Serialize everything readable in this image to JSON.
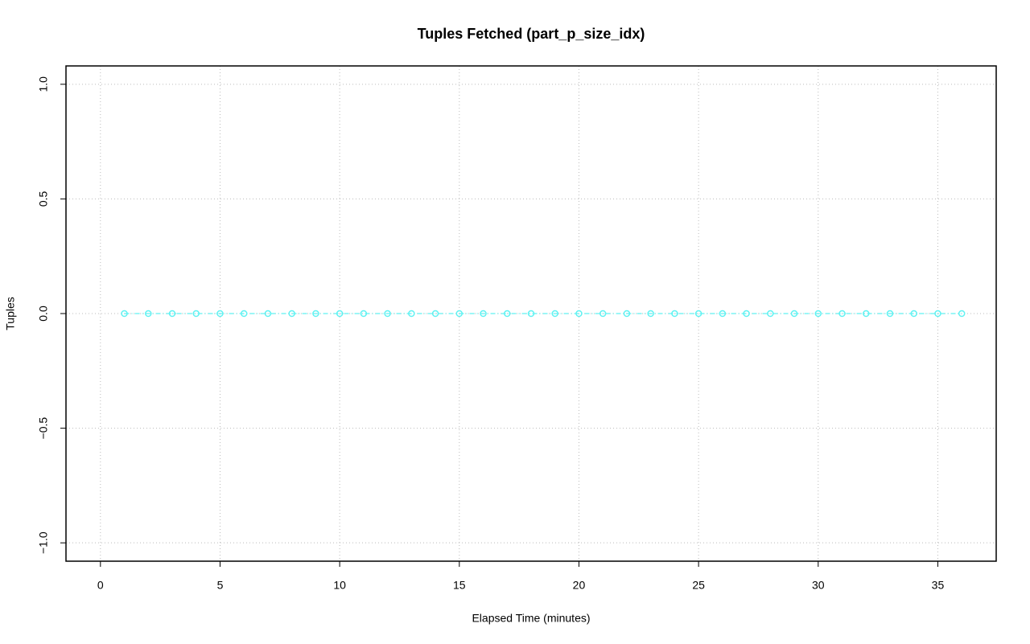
{
  "chart_data": {
    "type": "line",
    "title": "Tuples Fetched (part_p_size_idx)",
    "x_label": "Elapsed Time (minutes)",
    "y_label": "Tuples",
    "x": [
      1,
      2,
      3,
      4,
      5,
      6,
      7,
      8,
      9,
      10,
      11,
      12,
      13,
      14,
      15,
      16,
      17,
      18,
      19,
      20,
      21,
      22,
      23,
      24,
      25,
      26,
      27,
      28,
      29,
      30,
      31,
      32,
      33,
      34,
      35,
      36
    ],
    "values": [
      0,
      0,
      0,
      0,
      0,
      0,
      0,
      0,
      0,
      0,
      0,
      0,
      0,
      0,
      0,
      0,
      0,
      0,
      0,
      0,
      0,
      0,
      0,
      0,
      0,
      0,
      0,
      0,
      0,
      0,
      0,
      0,
      0,
      0,
      0,
      0
    ],
    "color": "#5ff2f2",
    "xlim": [
      -1.44,
      37.44
    ],
    "xticks": [
      0,
      5,
      10,
      15,
      20,
      25,
      30,
      35
    ],
    "ylim": [
      -1.08,
      1.08
    ],
    "yticks": [
      {
        "value": -1,
        "label": "−1.0"
      },
      {
        "value": -0.5,
        "label": "−0.5"
      },
      {
        "value": 0,
        "label": "0.0"
      },
      {
        "value": 0.5,
        "label": "0.5"
      },
      {
        "value": 1,
        "label": "1.0"
      }
    ],
    "grid": true
  }
}
